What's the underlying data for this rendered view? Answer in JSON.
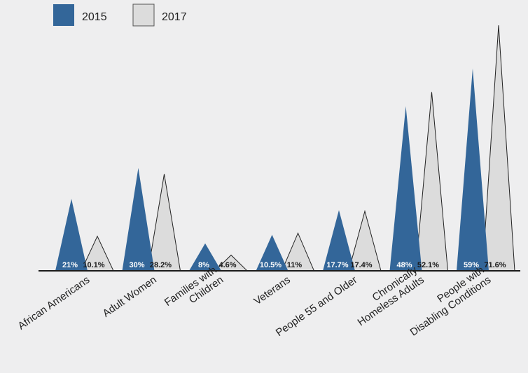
{
  "chart_data": {
    "type": "bar",
    "categories": [
      [
        "African Americans"
      ],
      [
        "Adult Women"
      ],
      [
        "Families with",
        "Children"
      ],
      [
        "Veterans"
      ],
      [
        "People 55 and Older"
      ],
      [
        "Chronically",
        "Homeless Adults"
      ],
      [
        "People with",
        "Disabling Conditions"
      ]
    ],
    "series": [
      {
        "name": "2015",
        "color": "#336699",
        "values": [
          21,
          30,
          8,
          10.5,
          17.7,
          48,
          59
        ],
        "labels": [
          "21%",
          "30%",
          "8%",
          "10.5%",
          "17.7%",
          "48%",
          "59%"
        ]
      },
      {
        "name": "2017",
        "color": "#dcdcdc",
        "values": [
          10.1,
          28.2,
          4.6,
          11,
          17.4,
          52.1,
          71.6
        ],
        "labels": [
          "10.1%",
          "28.2%",
          "4.6%",
          "11%",
          "17.4%",
          "52.1%",
          "71.6%"
        ]
      }
    ],
    "legend_position": "top-left",
    "grid": false
  }
}
